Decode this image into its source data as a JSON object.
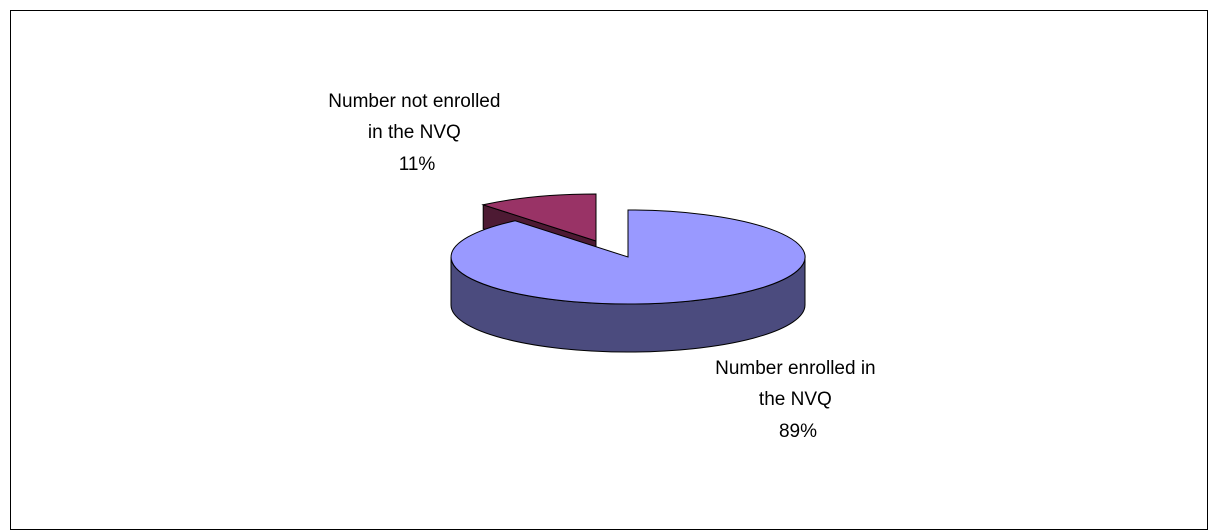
{
  "chart_data": {
    "type": "pie",
    "style": "3d-exploded",
    "title": "",
    "slices": [
      {
        "label_lines": [
          "Number enrolled in",
          "the NVQ"
        ],
        "percent_label": "89%",
        "value": 89,
        "color_top": "#9999ff",
        "color_side": "#4b4b7e"
      },
      {
        "label_lines": [
          "Number not enrolled",
          "in the NVQ"
        ],
        "percent_label": "11%",
        "value": 11,
        "color_top": "#993366",
        "color_side": "#4d1a33"
      }
    ],
    "legend": "none"
  }
}
